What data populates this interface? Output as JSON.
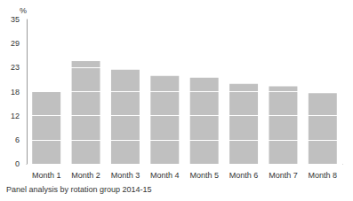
{
  "chart_data": {
    "type": "bar",
    "subtitle": "Panel analysis by rotation group 2014-15",
    "y_label": "%",
    "categories": [
      "Month 1",
      "Month 2",
      "Month 3",
      "Month 4",
      "Month 5",
      "Month 6",
      "Month 7",
      "Month 8"
    ],
    "values": [
      17.5,
      24.9,
      22.8,
      21.3,
      20.9,
      19.4,
      18.8,
      17.1
    ],
    "color": "#c0c0c0",
    "ylim": [
      0,
      35
    ],
    "yticks": [
      0,
      {
        "value": 5.8333,
        "label": "6"
      },
      {
        "value": 11.6667,
        "label": "12"
      },
      {
        "value": 17.5,
        "label": "18"
      },
      {
        "value": 23.3333,
        "label": "23"
      },
      {
        "value": 29.1667,
        "label": "29"
      },
      35
    ],
    "grid": true
  }
}
